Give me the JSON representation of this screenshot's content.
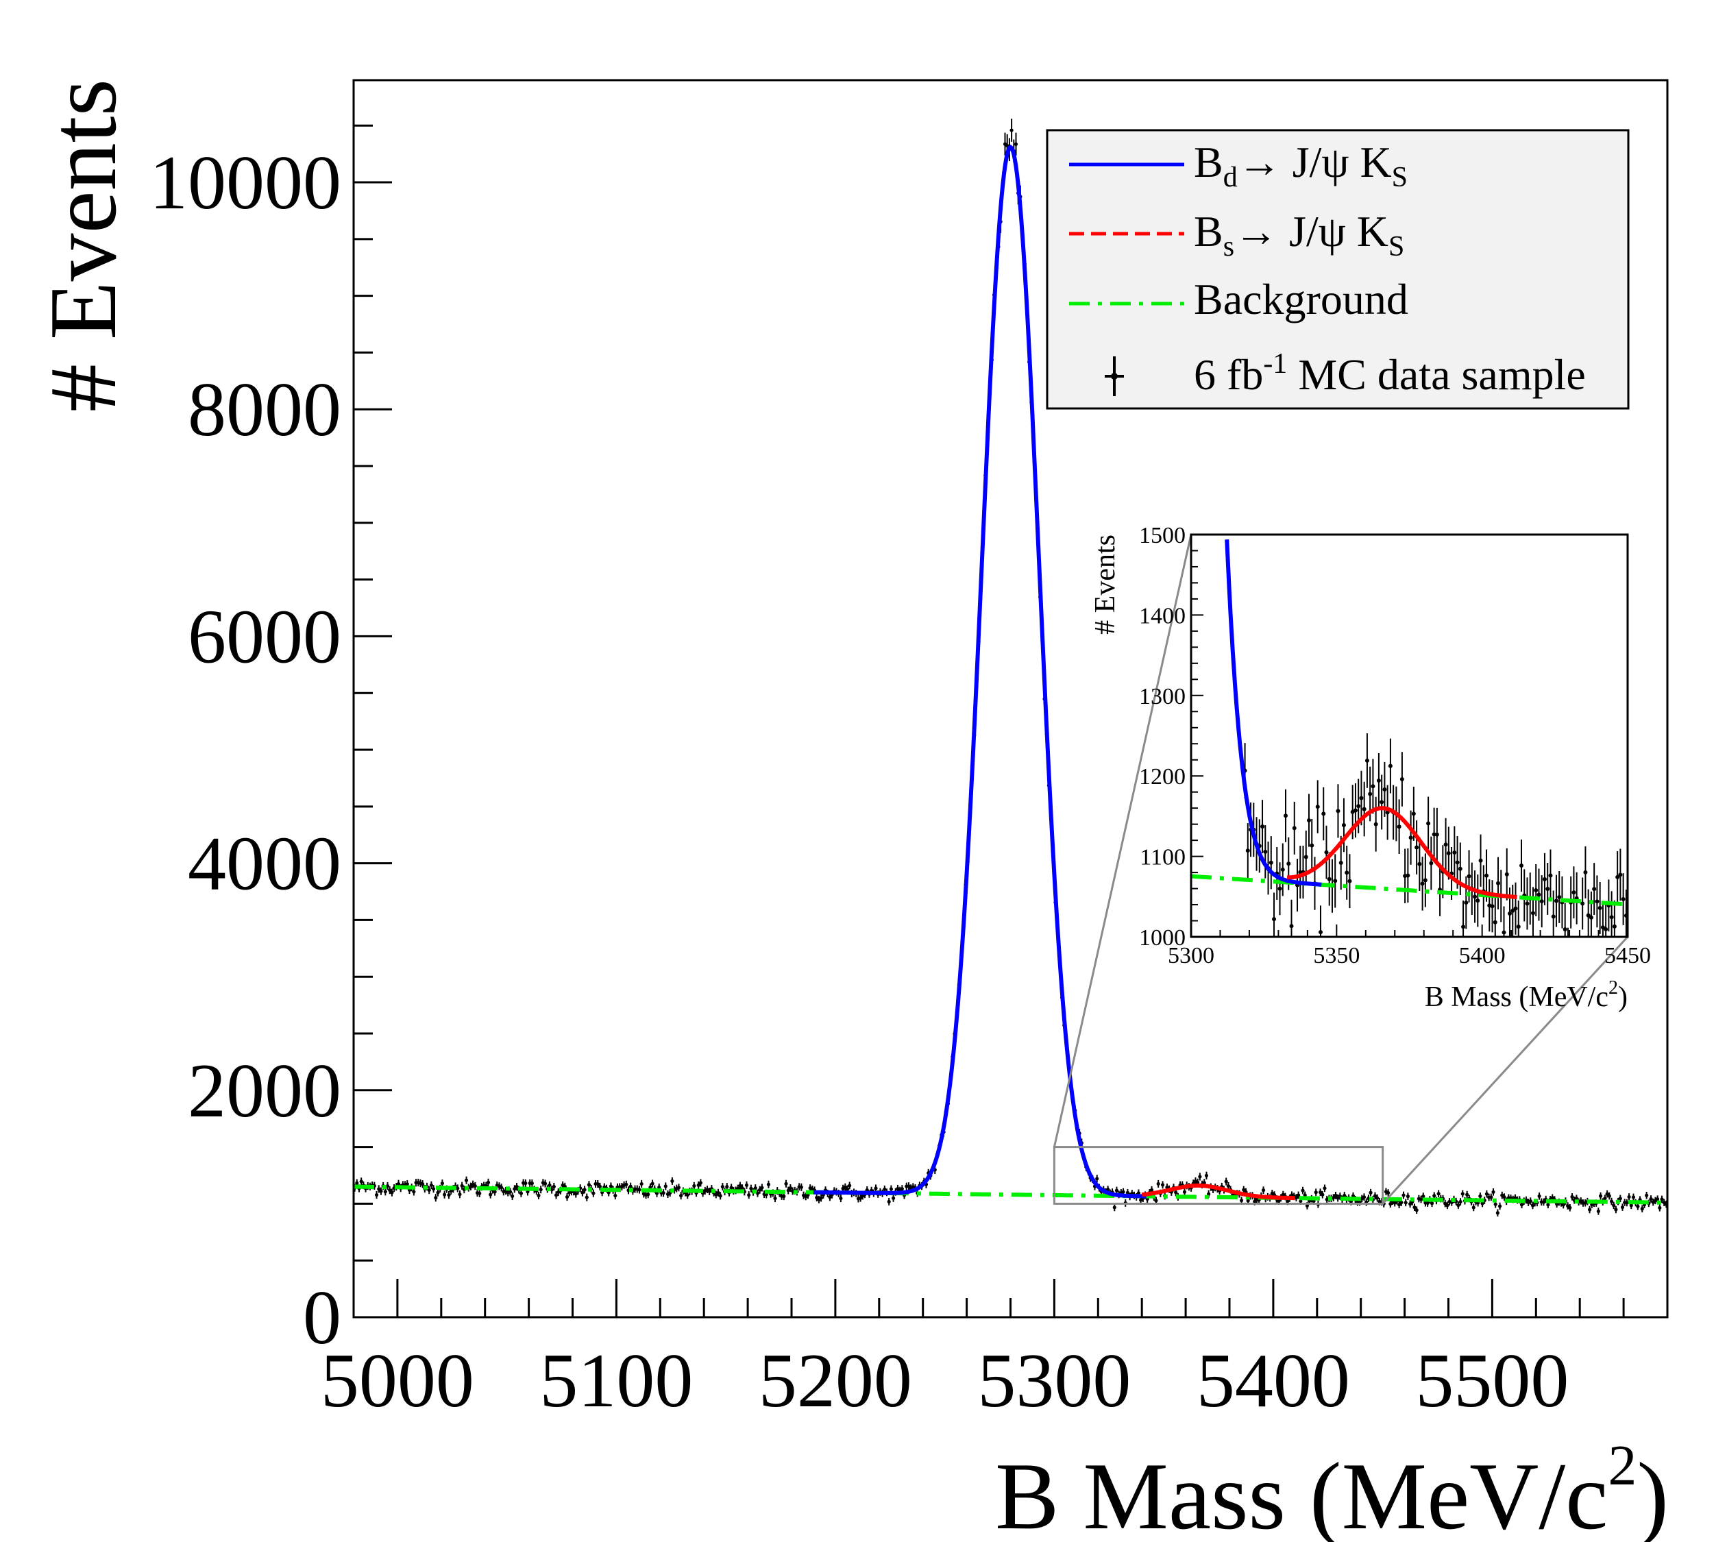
{
  "chart_data": {
    "type": "line",
    "title": "",
    "xlabel": "B Mass (MeV/c",
    "xlabel_sup": "2",
    "xlabel_close": ")",
    "ylabel": "# Events",
    "xlim": [
      4980,
      5580
    ],
    "ylim": [
      0,
      10900
    ],
    "xticks": [
      5000,
      5100,
      5200,
      5300,
      5400,
      5500
    ],
    "yticks": [
      0,
      2000,
      4000,
      6000,
      8000,
      10000
    ],
    "legend": {
      "placement": "top-right",
      "entries": [
        {
          "id": "bd",
          "main": "B",
          "sub": "d",
          "rest": "→ J/ψ K",
          "sub2": "S",
          "color": "#0000ff",
          "style": "solid"
        },
        {
          "id": "bs",
          "main": "B",
          "sub": "s",
          "rest": "→ J/ψ K",
          "sub2": "S",
          "color": "#ff0000",
          "style": "dashed"
        },
        {
          "id": "bkg",
          "main": "Background",
          "color": "#00ee00",
          "style": "dashdot"
        },
        {
          "id": "mc",
          "main": "6 fb",
          "sup": "-1",
          "rest": " MC data sample",
          "color": "#000000",
          "style": "errorbar"
        }
      ]
    },
    "series": [
      {
        "name": "Bd → J/ψ KS",
        "color": "#0000ff",
        "model": "gaussian+background",
        "peak_mass": 5280,
        "peak_height": 9230,
        "sigma": 13,
        "peak_events": 10280
      },
      {
        "name": "Bs → J/ψ KS",
        "color": "#ff0000",
        "model": "gaussian+background",
        "peak_mass": 5366,
        "peak_height": 100,
        "sigma": 13
      },
      {
        "name": "Background",
        "color": "#00ee00",
        "model": "linear",
        "points": [
          [
            4980,
            1150
          ],
          [
            5580,
            1010
          ]
        ]
      },
      {
        "name": "6 fb-1 MC data sample",
        "color": "#000000",
        "model": "histogram-points",
        "x_range": [
          4980,
          5580
        ],
        "bin_width": 1
      }
    ],
    "zoom_region": {
      "xlim": [
        5300,
        5450
      ],
      "ylim": [
        1000,
        1500
      ]
    },
    "inset": {
      "placement": "right-middle",
      "xlabel": "B Mass (MeV/c",
      "xlabel_sup": "2",
      "xlabel_close": ")",
      "ylabel": "# Events",
      "xlim": [
        5300,
        5450
      ],
      "ylim": [
        1000,
        1500
      ],
      "xticks": [
        5300,
        5350,
        5400,
        5450
      ],
      "yticks": [
        1000,
        1100,
        1200,
        1300,
        1400,
        1500
      ]
    }
  }
}
